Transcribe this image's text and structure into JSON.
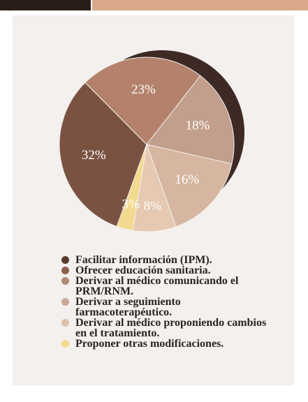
{
  "chart_data": {
    "type": "pie",
    "categories": [
      "Facilitar información (IPM).",
      "Ofrecer educación sanitaria.",
      "Derivar al médico comunicando el PRM/RNM.",
      "Derivar a seguimiento farmacoterapéutico.",
      "Derivar al médico proponiendo cambios en el tratamiento.",
      "Proponer otras modificaciones."
    ],
    "values": [
      32,
      23,
      18,
      16,
      8,
      3
    ],
    "value_labels": [
      "32%",
      "23%",
      "18%",
      "16%",
      "8%",
      "3%"
    ],
    "colors": [
      "#7a5242",
      "#b4826c",
      "#c29e8c",
      "#d6b6a0",
      "#e6c9b0",
      "#f3d98e"
    ],
    "legend_colors": [
      "#5a3a30",
      "#8c6050",
      "#b08a78",
      "#c8a898",
      "#dfc0aa",
      "#f5d98a"
    ]
  }
}
